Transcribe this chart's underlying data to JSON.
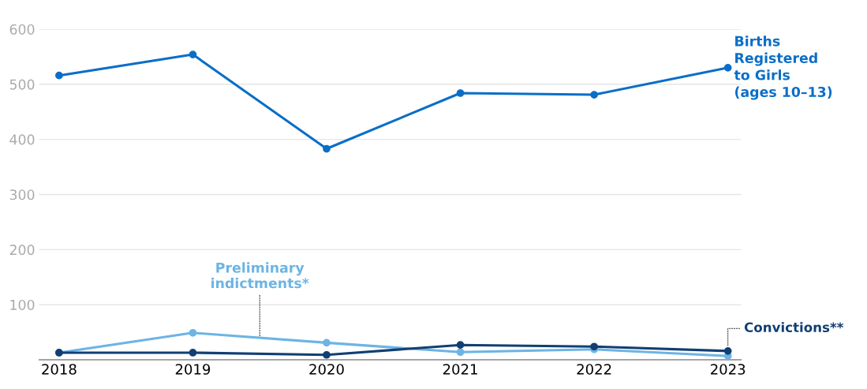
{
  "chart_data": {
    "type": "line",
    "categories": [
      "2018",
      "2019",
      "2020",
      "2021",
      "2022",
      "2023"
    ],
    "series": [
      {
        "name": "Births\nRegistered\nto Girls\n(ages 10–13)",
        "color": "#0a6ec8",
        "values": [
          516,
          554,
          383,
          484,
          481,
          530
        ]
      },
      {
        "name": "Preliminary\nindictments*",
        "color": "#6cb4e4",
        "values": [
          13,
          49,
          31,
          14,
          19,
          7
        ]
      },
      {
        "name": "Convictions**",
        "color": "#123f73",
        "values": [
          13,
          13,
          9,
          27,
          24,
          16
        ]
      }
    ],
    "ylim": [
      0,
      600
    ],
    "yticks": [
      {
        "value": 0,
        "label": null
      },
      100,
      200,
      300,
      400,
      500,
      600
    ],
    "grid": "y",
    "legend": false,
    "marker": "circle",
    "line_style": "solid"
  }
}
